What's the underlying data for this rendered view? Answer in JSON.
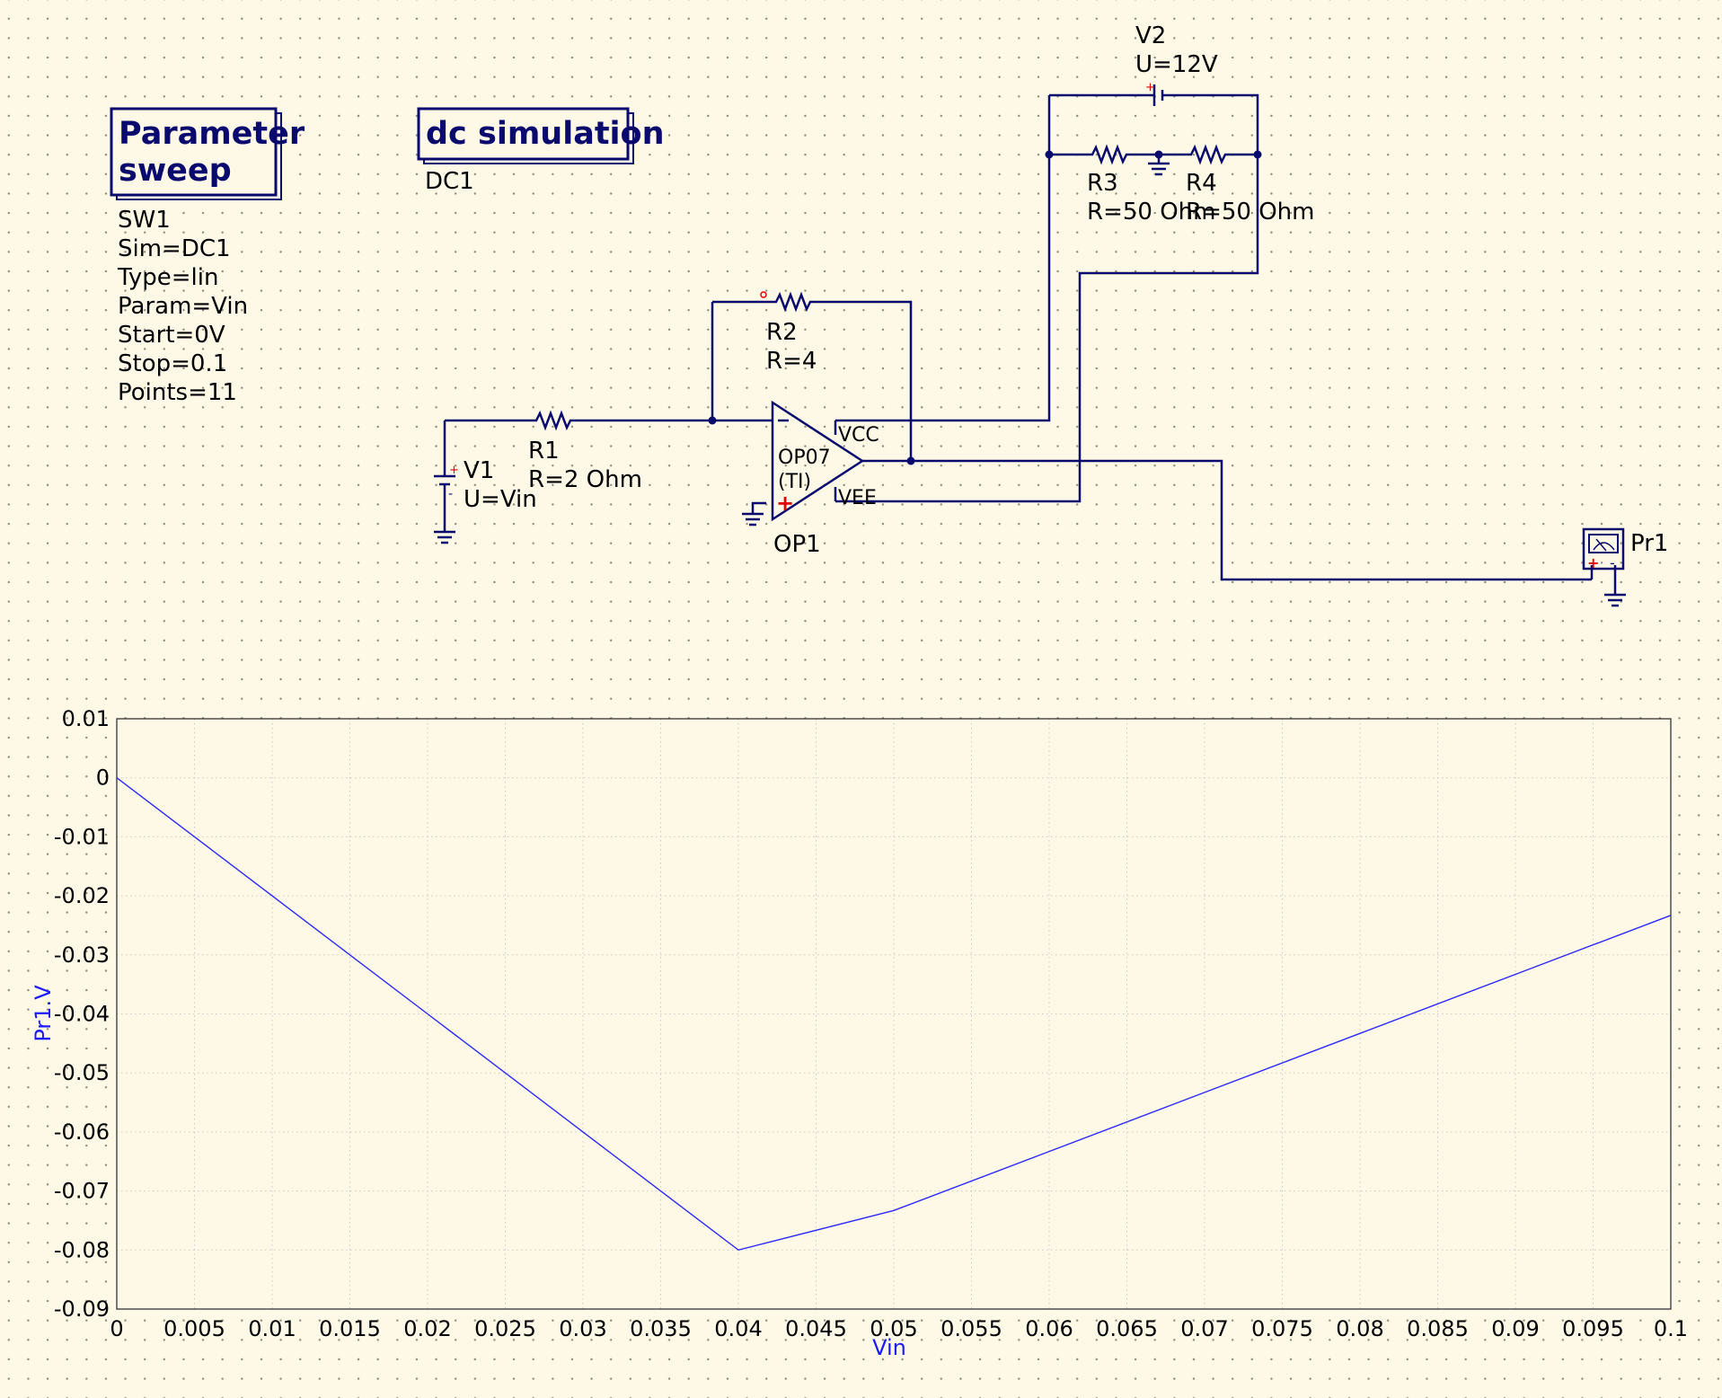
{
  "components": {
    "sweep": {
      "title_line1": "Parameter",
      "title_line2": "sweep",
      "name": "SW1",
      "props": [
        "Sim=DC1",
        "Type=lin",
        "Param=Vin",
        "Start=0V",
        "Stop=0.1",
        "Points=11"
      ]
    },
    "dcsim": {
      "title": "dc simulation",
      "name": "DC1"
    },
    "v1": {
      "name": "V1",
      "value": "U=Vin"
    },
    "v2": {
      "name": "V2",
      "value": "U=12V"
    },
    "r1": {
      "name": "R1",
      "value": "R=2 Ohm"
    },
    "r2": {
      "name": "R2",
      "value": "R=4"
    },
    "r3": {
      "name": "R3",
      "value": "R=50 Ohm"
    },
    "r4": {
      "name": "R4",
      "value": "R=50 Ohm"
    },
    "op1": {
      "name": "OP1",
      "model": "OP07",
      "vendor": "(TI)",
      "pin_vcc": "VCC",
      "pin_vee": "VEE"
    },
    "pr1": {
      "name": "Pr1"
    }
  },
  "colors": {
    "wire": "#0a0a6e",
    "trace": "#2a2aff",
    "background": "#fdf9e6",
    "polarity": "#e00000"
  },
  "chart_data": {
    "type": "line",
    "xlabel": "Vin",
    "ylabel": "Pr1.V",
    "xlim": [
      0,
      0.1
    ],
    "ylim": [
      -0.09,
      0.01
    ],
    "grid": true,
    "x_ticks": [
      "0",
      "0.005",
      "0.01",
      "0.015",
      "0.02",
      "0.025",
      "0.03",
      "0.035",
      "0.04",
      "0.045",
      "0.05",
      "0.055",
      "0.06",
      "0.065",
      "0.07",
      "0.075",
      "0.08",
      "0.085",
      "0.09",
      "0.095",
      "0.1"
    ],
    "y_ticks": [
      "0.01",
      "0",
      "-0.01",
      "-0.02",
      "-0.03",
      "-0.04",
      "-0.05",
      "-0.06",
      "-0.07",
      "-0.08",
      "-0.09"
    ],
    "series": [
      {
        "x": [
          0,
          0.01,
          0.02,
          0.03,
          0.04,
          0.05,
          0.06,
          0.07,
          0.08,
          0.09,
          0.1
        ],
        "y": [
          0,
          -0.02,
          -0.04,
          -0.06,
          -0.08,
          -0.0733,
          -0.0633,
          -0.0533,
          -0.0433,
          -0.0333,
          -0.0233
        ]
      }
    ]
  }
}
